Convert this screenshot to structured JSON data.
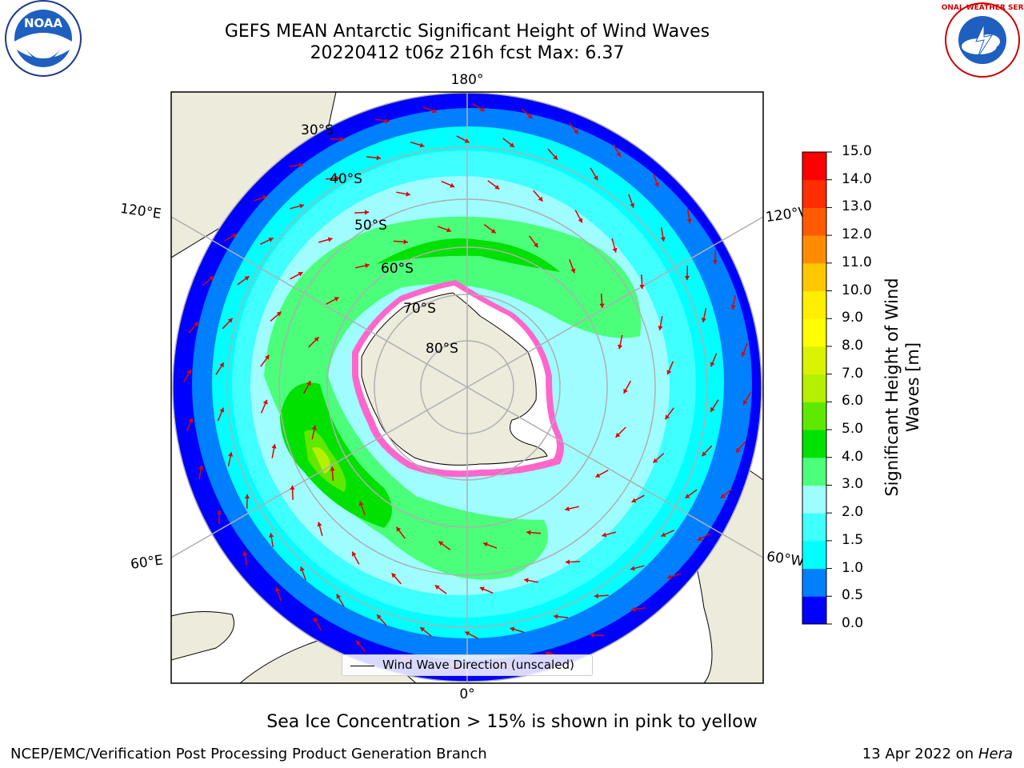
{
  "header": {
    "title_line1": "GEFS MEAN Antarctic Significant Height of Wind Waves",
    "title_line2": "20220412 t06z 216h fcst   Max: 6.37",
    "noaa_logo_text": "NOAA",
    "nws_logo_text": "NATIONAL WEATHER SERVICE"
  },
  "map": {
    "longitude_labels": {
      "top": "180°",
      "bottom": "0°",
      "upper_left": "120°E",
      "upper_right": "120°W",
      "lower_left": "60°E",
      "lower_right": "60°W"
    },
    "latitude_labels": [
      "30°S",
      "40°S",
      "50°S",
      "60°S",
      "70°S",
      "80°S"
    ],
    "legend_text": "Wind Wave Direction (unscaled)"
  },
  "colorbar": {
    "title_line1": "Significant Height of Wind",
    "title_line2": "Waves [m]",
    "ticks": [
      "0.0",
      "0.5",
      "1.0",
      "1.5",
      "2.0",
      "3.0",
      "4.0",
      "5.0",
      "6.0",
      "7.0",
      "8.0",
      "9.0",
      "10.0",
      "11.0",
      "12.0",
      "13.0",
      "14.0",
      "15.0"
    ],
    "colors": [
      "#0000ff",
      "#007fff",
      "#00ffff",
      "#3fffff",
      "#9ffdff",
      "#4bff7a",
      "#00e100",
      "#5fe900",
      "#b4f000",
      "#d9f200",
      "#ffff00",
      "#ffee00",
      "#ffc700",
      "#ff8c00",
      "#ff5a00",
      "#ff2d00",
      "#ff0000"
    ]
  },
  "sea_ice_note": "Sea Ice Concentration > 15% is shown in pink to yellow",
  "footer": {
    "left": "NCEP/EMC/Verification Post Processing Product Generation Branch",
    "right_date": "13 Apr 2022 on ",
    "right_machine": "Hera"
  }
}
